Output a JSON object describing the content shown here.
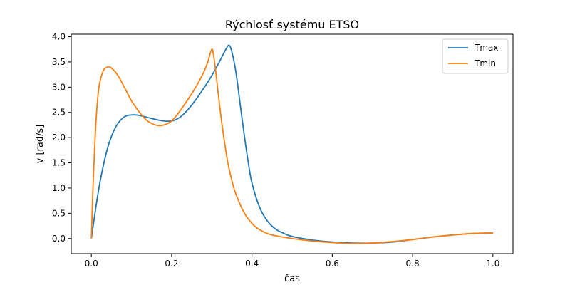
{
  "chart_data": {
    "type": "line",
    "title": "Rýchlosť systému ETSO",
    "xlabel": "čas",
    "ylabel": "v [rad/s]",
    "xlim": [
      -0.05,
      1.05
    ],
    "ylim": [
      -0.3,
      4.05
    ],
    "xticks": [
      0.0,
      0.2,
      0.4,
      0.6,
      0.8,
      1.0
    ],
    "xtick_labels": [
      "0.0",
      "0.2",
      "0.4",
      "0.6",
      "0.8",
      "1.0"
    ],
    "yticks": [
      0.0,
      0.5,
      1.0,
      1.5,
      2.0,
      2.5,
      3.0,
      3.5,
      4.0
    ],
    "ytick_labels": [
      "0.0",
      "0.5",
      "1.0",
      "1.5",
      "2.0",
      "2.5",
      "3.0",
      "3.5",
      "4.0"
    ],
    "grid": false,
    "legend_position": "top-right",
    "series": [
      {
        "name": "Tmax",
        "color": "#1f77b4",
        "x": [
          0.0,
          0.01,
          0.02,
          0.03,
          0.04,
          0.05,
          0.06,
          0.07,
          0.08,
          0.09,
          0.1,
          0.11,
          0.12,
          0.13,
          0.14,
          0.15,
          0.16,
          0.18,
          0.2,
          0.22,
          0.24,
          0.26,
          0.28,
          0.3,
          0.32,
          0.335,
          0.343,
          0.35,
          0.36,
          0.37,
          0.38,
          0.39,
          0.4,
          0.42,
          0.44,
          0.46,
          0.48,
          0.5,
          0.55,
          0.6,
          0.65,
          0.7,
          0.75,
          0.8,
          0.85,
          0.9,
          0.95,
          1.0
        ],
        "y": [
          0.0,
          0.55,
          1.05,
          1.45,
          1.78,
          2.02,
          2.2,
          2.32,
          2.4,
          2.44,
          2.45,
          2.45,
          2.44,
          2.42,
          2.4,
          2.38,
          2.36,
          2.33,
          2.33,
          2.4,
          2.55,
          2.75,
          2.98,
          3.23,
          3.52,
          3.75,
          3.83,
          3.7,
          3.3,
          2.7,
          2.1,
          1.55,
          1.1,
          0.6,
          0.33,
          0.18,
          0.1,
          0.04,
          -0.03,
          -0.07,
          -0.09,
          -0.09,
          -0.07,
          -0.02,
          0.03,
          0.07,
          0.1,
          0.11
        ]
      },
      {
        "name": "Tmin",
        "color": "#ff7f0e",
        "x": [
          0.0,
          0.005,
          0.01,
          0.015,
          0.02,
          0.03,
          0.04,
          0.045,
          0.05,
          0.06,
          0.07,
          0.08,
          0.09,
          0.1,
          0.12,
          0.14,
          0.16,
          0.175,
          0.19,
          0.2,
          0.22,
          0.24,
          0.26,
          0.28,
          0.29,
          0.3,
          0.305,
          0.31,
          0.32,
          0.33,
          0.34,
          0.35,
          0.36,
          0.38,
          0.4,
          0.42,
          0.45,
          0.5,
          0.55,
          0.6,
          0.65,
          0.7,
          0.75,
          0.8,
          0.85,
          0.9,
          0.95,
          1.0
        ],
        "y": [
          0.0,
          1.2,
          2.1,
          2.7,
          3.05,
          3.33,
          3.4,
          3.4,
          3.38,
          3.3,
          3.18,
          3.03,
          2.88,
          2.73,
          2.5,
          2.33,
          2.25,
          2.24,
          2.28,
          2.33,
          2.52,
          2.75,
          3.0,
          3.3,
          3.5,
          3.75,
          3.6,
          3.3,
          2.6,
          2.0,
          1.5,
          1.15,
          0.88,
          0.52,
          0.3,
          0.17,
          0.07,
          0.0,
          -0.05,
          -0.08,
          -0.1,
          -0.09,
          -0.06,
          -0.02,
          0.03,
          0.07,
          0.1,
          0.11
        ]
      }
    ]
  }
}
